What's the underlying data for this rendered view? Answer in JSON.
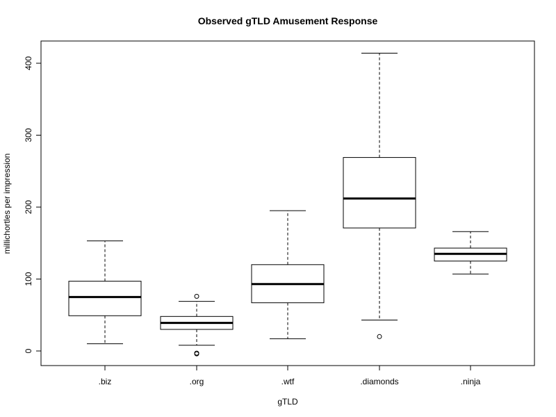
{
  "chart_data": {
    "type": "box",
    "title": "Observed gTLD Amusement Response",
    "xlabel": "gTLD",
    "ylabel": "millichortles per impression",
    "categories": [
      ".biz",
      ".org",
      ".wtf",
      ".diamonds",
      ".ninja"
    ],
    "ylim": [
      -20,
      430
    ],
    "yticks": [
      0,
      100,
      200,
      300,
      400
    ],
    "grid": false,
    "boxes": [
      {
        "category": ".biz",
        "whisker_low": 10,
        "q1": 49,
        "median": 75,
        "q3": 97,
        "whisker_high": 153,
        "outliers": []
      },
      {
        "category": ".org",
        "whisker_low": 8,
        "q1": 30,
        "median": 39,
        "q3": 48,
        "whisker_high": 69,
        "outliers": [
          76,
          -3,
          -4
        ]
      },
      {
        "category": ".wtf",
        "whisker_low": 17,
        "q1": 67,
        "median": 93,
        "q3": 120,
        "whisker_high": 195,
        "outliers": []
      },
      {
        "category": ".diamonds",
        "whisker_low": 43,
        "q1": 171,
        "median": 212,
        "q3": 269,
        "whisker_high": 414,
        "outliers": [
          20
        ]
      },
      {
        "category": ".ninja",
        "whisker_low": 107,
        "q1": 125,
        "median": 135,
        "q3": 143,
        "whisker_high": 166,
        "outliers": []
      }
    ]
  }
}
